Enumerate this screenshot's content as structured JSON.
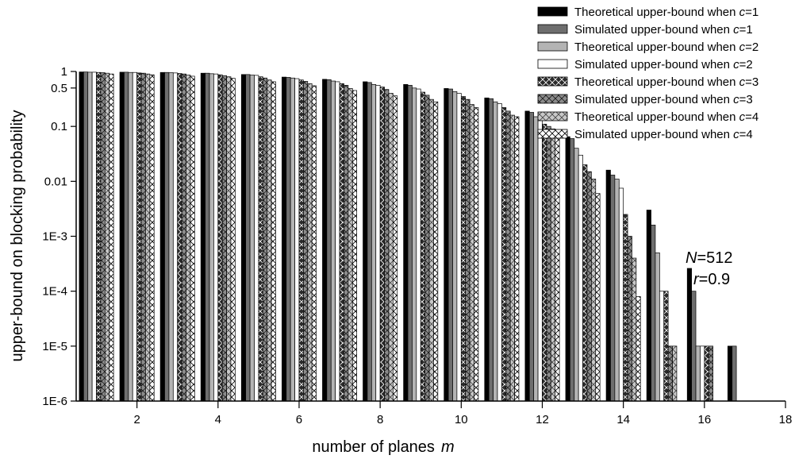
{
  "chart_data": {
    "type": "bar",
    "title": "",
    "xlabel_text": "number of planes",
    "xlabel_var": "m",
    "ylabel": "upper-bound on blocking probability",
    "y_scale": "log",
    "ylim": [
      1e-06,
      1
    ],
    "xlim": [
      0.5,
      18
    ],
    "x_ticks": [
      2,
      4,
      6,
      8,
      10,
      12,
      14,
      16,
      18
    ],
    "x_tick_labels": [
      "2",
      "4",
      "6",
      "8",
      "10",
      "12",
      "14",
      "16",
      "18"
    ],
    "y_ticks": [
      1,
      0.5,
      0.1,
      0.01,
      0.001,
      0.0001,
      1e-05,
      1e-06
    ],
    "y_tick_labels": [
      "1",
      "0.5",
      "0.1",
      "0.01",
      "1E-3",
      "1E-4",
      "1E-5",
      "1E-6"
    ],
    "categories": [
      1,
      2,
      3,
      4,
      5,
      6,
      7,
      8,
      9,
      10,
      11,
      12,
      13,
      14,
      15,
      16,
      17
    ],
    "legend_position": "top-right",
    "series": [
      {
        "name_text": "Theoretical upper-bound when ",
        "name_var": "c",
        "name_value": "=1",
        "fill": "#000000",
        "pattern": "solid",
        "values": [
          0.98,
          0.97,
          0.96,
          0.93,
          0.88,
          0.79,
          0.72,
          0.65,
          0.58,
          0.49,
          0.33,
          0.19,
          0.065,
          0.016,
          0.003,
          0.00026,
          1e-05
        ]
      },
      {
        "name_text": "Simulated upper-bound when ",
        "name_var": "c",
        "name_value": "=1",
        "fill": "#6e6e6e",
        "pattern": "solid",
        "values": [
          0.98,
          0.97,
          0.96,
          0.93,
          0.88,
          0.78,
          0.71,
          0.63,
          0.56,
          0.48,
          0.32,
          0.18,
          0.06,
          0.013,
          0.0016,
          0.0001,
          1e-05
        ]
      },
      {
        "name_text": "Theoretical upper-bound when ",
        "name_var": "c",
        "name_value": "=2",
        "fill": "#b4b4b4",
        "pattern": "solid",
        "values": [
          0.97,
          0.96,
          0.95,
          0.91,
          0.86,
          0.76,
          0.67,
          0.58,
          0.5,
          0.43,
          0.28,
          0.15,
          0.04,
          0.011,
          0.0005,
          1e-05,
          null
        ]
      },
      {
        "name_text": "Simulated upper-bound when ",
        "name_var": "c",
        "name_value": "=2",
        "fill": "#ffffff",
        "pattern": "solid",
        "values": [
          0.97,
          0.96,
          0.94,
          0.9,
          0.85,
          0.74,
          0.65,
          0.56,
          0.48,
          0.4,
          0.26,
          0.13,
          0.03,
          0.0075,
          0.0001,
          1e-05,
          null
        ]
      },
      {
        "name_text": "Theoretical upper-bound when ",
        "name_var": "c",
        "name_value": "=3",
        "fill": "#2a2a2a",
        "pattern": "cross",
        "values": [
          0.96,
          0.94,
          0.92,
          0.87,
          0.8,
          0.7,
          0.6,
          0.52,
          0.42,
          0.35,
          0.22,
          0.11,
          0.02,
          0.0025,
          0.0001,
          1e-05,
          null
        ]
      },
      {
        "name_text": "Simulated upper-bound when ",
        "name_var": "c",
        "name_value": "=3",
        "fill": "#8c8c8c",
        "pattern": "cross",
        "values": [
          0.95,
          0.93,
          0.9,
          0.84,
          0.76,
          0.66,
          0.56,
          0.47,
          0.37,
          0.31,
          0.19,
          0.1,
          0.015,
          0.001,
          1e-05,
          1e-05,
          null
        ]
      },
      {
        "name_text": "Theoretical upper-bound when ",
        "name_var": "c",
        "name_value": "=4",
        "fill": "#c8c8c8",
        "pattern": "cross",
        "values": [
          0.93,
          0.9,
          0.86,
          0.8,
          0.7,
          0.6,
          0.49,
          0.4,
          0.31,
          0.25,
          0.16,
          0.09,
          0.011,
          0.0004,
          1e-05,
          null,
          null
        ]
      },
      {
        "name_text": "Simulated upper-bound when ",
        "name_var": "c",
        "name_value": "=4",
        "fill": "#ffffff",
        "pattern": "cross",
        "values": [
          0.9,
          0.87,
          0.82,
          0.75,
          0.65,
          0.55,
          0.45,
          0.36,
          0.28,
          0.22,
          0.15,
          0.08,
          0.006,
          8e-05,
          null,
          null,
          null
        ]
      }
    ],
    "annotations": [
      {
        "var": "N",
        "text": "=512"
      },
      {
        "var": "r",
        "text": "=0.9"
      }
    ]
  }
}
